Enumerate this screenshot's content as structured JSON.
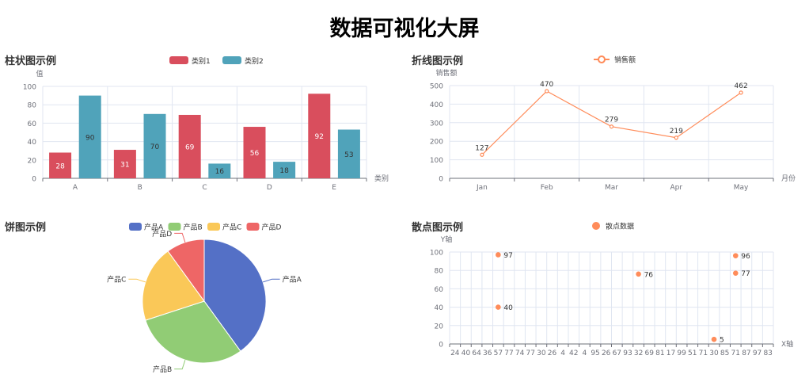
{
  "page_title": "数据可视化大屏",
  "chart_data": [
    {
      "type": "bar",
      "title": "柱状图示例",
      "xlabel": "类别",
      "ylabel": "值",
      "categories": [
        "A",
        "B",
        "C",
        "D",
        "E"
      ],
      "series": [
        {
          "name": "类别1",
          "values": [
            28,
            31,
            69,
            56,
            92
          ],
          "color": "#d94e5d"
        },
        {
          "name": "类别2",
          "values": [
            90,
            70,
            16,
            18,
            53
          ],
          "color": "#50a3ba"
        }
      ],
      "ylim": [
        0,
        100
      ],
      "yticks": [
        0,
        20,
        40,
        60,
        80,
        100
      ],
      "grid": true,
      "legend": "top-center"
    },
    {
      "type": "line",
      "title": "折线图示例",
      "xlabel": "月份",
      "ylabel": "销售额",
      "categories": [
        "Jan",
        "Feb",
        "Mar",
        "Apr",
        "May"
      ],
      "series": [
        {
          "name": "销售额",
          "values": [
            127,
            470,
            279,
            219,
            462
          ],
          "color": "#ff8c5a"
        }
      ],
      "ylim": [
        0,
        500
      ],
      "yticks": [
        0,
        100,
        200,
        300,
        400,
        500
      ],
      "grid": true,
      "legend": "top-center"
    },
    {
      "type": "pie",
      "title": "饼图示例",
      "categories": [
        "产品A",
        "产品B",
        "产品C",
        "产品D"
      ],
      "values": [
        40,
        30,
        20,
        10
      ],
      "colors": [
        "#5470c6",
        "#91cc75",
        "#fac858",
        "#ee6666"
      ],
      "legend": "top-center"
    },
    {
      "type": "scatter",
      "title": "散点图示例",
      "xlabel": "X轴",
      "ylabel": "Y轴",
      "x_categories": [
        "24",
        "40",
        "64",
        "36",
        "57",
        "77",
        "74",
        "77",
        "30",
        "26",
        "4",
        "42",
        "4",
        "95",
        "26",
        "67",
        "93",
        "32",
        "69",
        "81",
        "17",
        "99",
        "51",
        "71",
        "30",
        "85",
        "71",
        "87",
        "97",
        "83"
      ],
      "series": [
        {
          "name": "散点数据",
          "color": "#ff8c5a",
          "points": [
            {
              "x_index": 4,
              "x": "57",
              "y": 97
            },
            {
              "x_index": 4,
              "x": "57",
              "y": 40
            },
            {
              "x_index": 17,
              "x": "32",
              "y": 76
            },
            {
              "x_index": 24,
              "x": "30",
              "y": 5
            },
            {
              "x_index": 26,
              "x": "71",
              "y": 96
            },
            {
              "x_index": 26,
              "x": "71",
              "y": 77
            }
          ]
        }
      ],
      "ylim": [
        0,
        100
      ],
      "yticks": [
        0,
        20,
        40,
        60,
        80,
        100
      ],
      "grid": true,
      "legend": "top-center"
    }
  ]
}
